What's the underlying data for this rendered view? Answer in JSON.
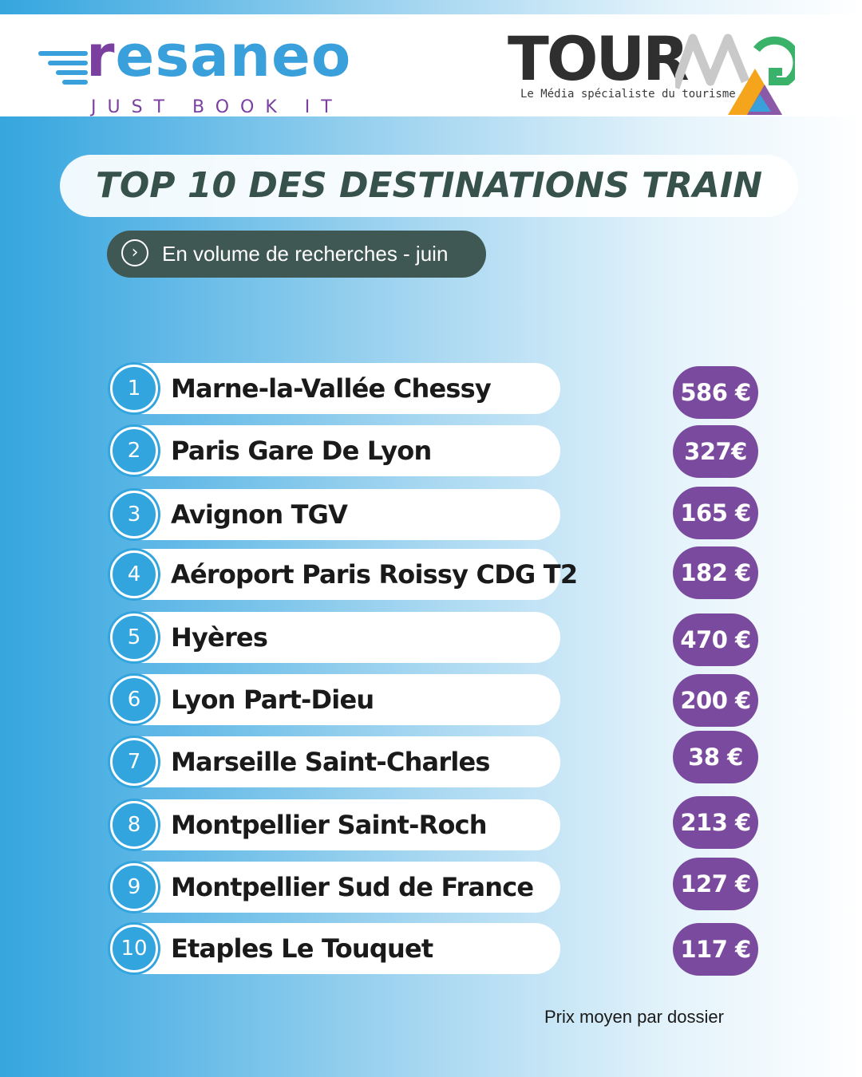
{
  "brands": {
    "resaneo": {
      "name": "resaneo",
      "tagline": "JUST BOOK IT",
      "colors": {
        "purple": "#7b3fa0",
        "blue": "#3aa0db"
      }
    },
    "tourmag": {
      "name": "TOURMAG",
      "tagline": "Le Média spécialiste du tourisme",
      "colors": {
        "dark": "#2f2f2f",
        "orange": "#f4a51c",
        "green": "#3bb26a",
        "purple": "#8a5aa8",
        "blue": "#3aa0db"
      }
    }
  },
  "title": "TOP 10 DES DESTINATIONS TRAIN",
  "subtitle": "En volume de recherches - juin",
  "subtitle_icon": "chevron-right-circle-icon",
  "destinations": [
    {
      "rank": "1",
      "name": "Marne-la-Vallée Chessy",
      "price": "586 €"
    },
    {
      "rank": "2",
      "name": "Paris Gare De Lyon",
      "price": "327€"
    },
    {
      "rank": "3",
      "name": "Avignon TGV",
      "price": "165 €"
    },
    {
      "rank": "4",
      "name": "Aéroport Paris Roissy CDG T2",
      "price": "182 €"
    },
    {
      "rank": "5",
      "name": "Hyères",
      "price": "470 €"
    },
    {
      "rank": "6",
      "name": "Lyon Part-Dieu",
      "price": "200 €"
    },
    {
      "rank": "7",
      "name": "Marseille Saint-Charles",
      "price": "38 €"
    },
    {
      "rank": "8",
      "name": "Montpellier Saint-Roch",
      "price": "213 €"
    },
    {
      "rank": "9",
      "name": "Montpellier Sud de France",
      "price": "127 €"
    },
    {
      "rank": "10",
      "name": "Etaples Le Touquet",
      "price": "117 €"
    }
  ],
  "footnote": "Prix moyen par dossier",
  "colors": {
    "rank_blue": "#33a5de",
    "price_purple": "#7a4a9e",
    "title_green": "#36524a",
    "subtitle_bg": "#3f5853"
  }
}
